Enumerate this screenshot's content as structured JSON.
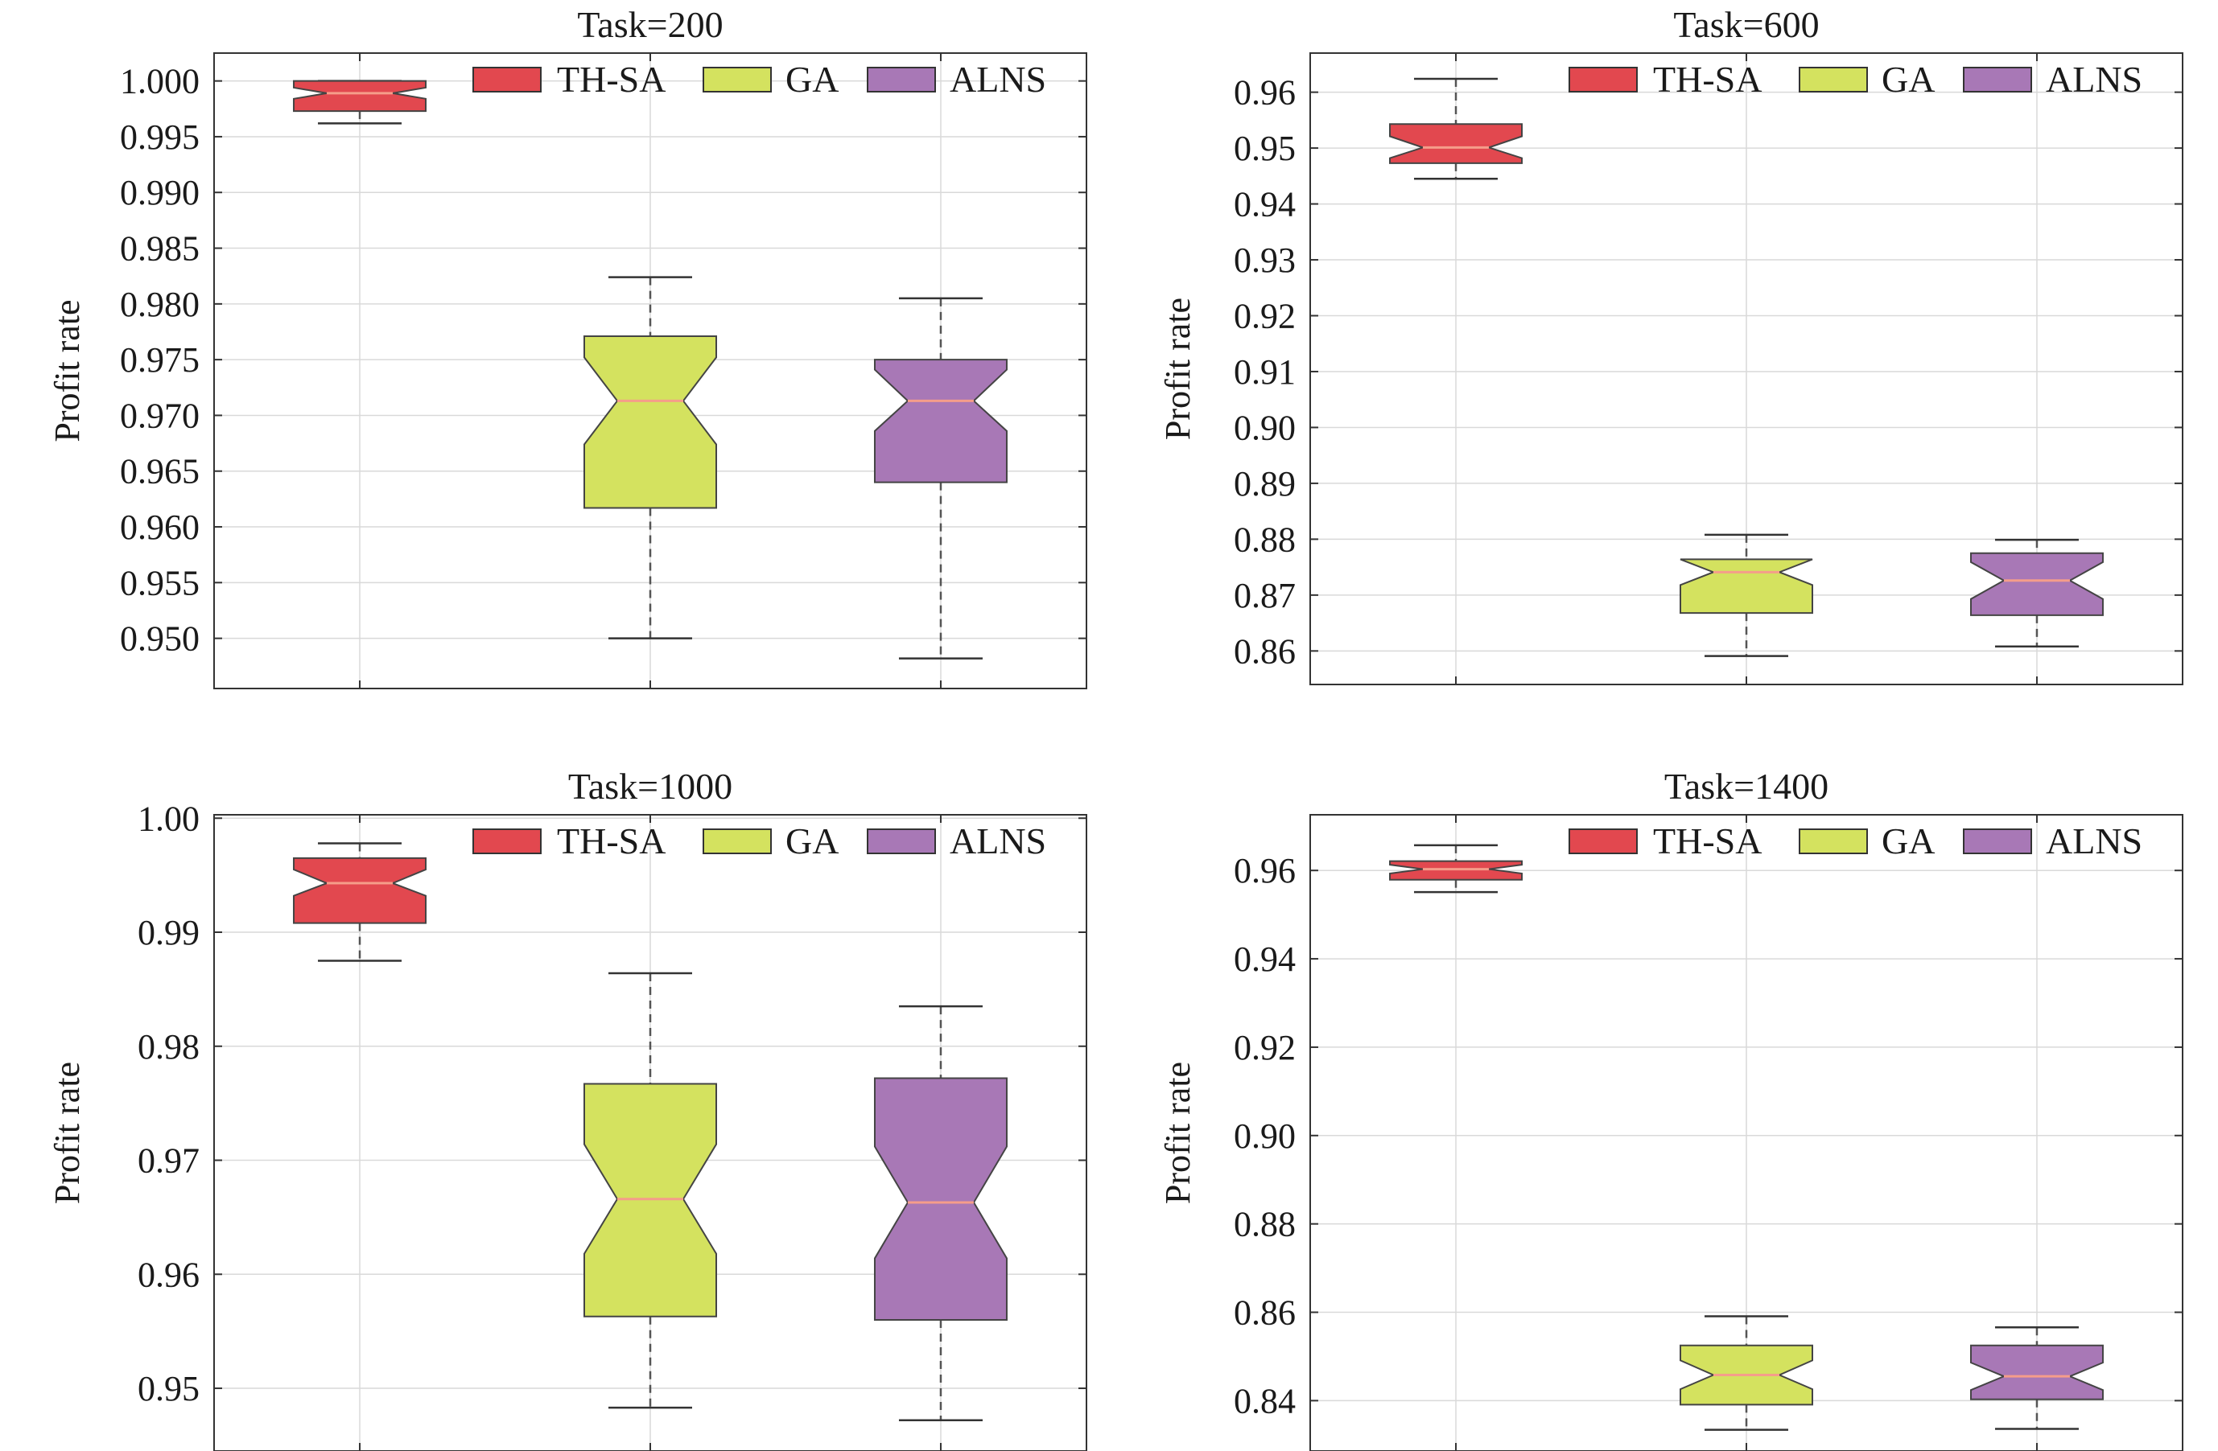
{
  "chart_data": [
    {
      "type": "box",
      "title": "Task=200",
      "ylabel": "Profit rate",
      "ylim": [
        0.9455,
        1.0025
      ],
      "yticks": [
        0.95,
        0.955,
        0.96,
        0.965,
        0.97,
        0.975,
        0.98,
        0.985,
        0.99,
        0.995,
        1.0
      ],
      "ytick_labels": [
        "0.950",
        "0.955",
        "0.960",
        "0.965",
        "0.970",
        "0.975",
        "0.980",
        "0.985",
        "0.990",
        "0.995",
        "1.000"
      ],
      "grid": true,
      "notched": true,
      "legend_position": "top-right",
      "series": [
        {
          "name": "TH-SA",
          "whisker_low": 0.9962,
          "q1": 0.9973,
          "median": 0.9989,
          "q3": 1.0,
          "whisker_high": 1.0,
          "notch_low": 0.9984,
          "notch_high": 0.9994
        },
        {
          "name": "GA",
          "whisker_low": 0.95,
          "q1": 0.9617,
          "median": 0.9713,
          "q3": 0.9771,
          "whisker_high": 0.9824,
          "notch_low": 0.9674,
          "notch_high": 0.9752
        },
        {
          "name": "ALNS",
          "whisker_low": 0.9482,
          "q1": 0.964,
          "median": 0.9713,
          "q3": 0.975,
          "whisker_high": 0.9805,
          "notch_low": 0.9686,
          "notch_high": 0.9741
        }
      ]
    },
    {
      "type": "box",
      "title": "Task=600",
      "ylabel": "Profit rate",
      "ylim": [
        0.854,
        0.967
      ],
      "yticks": [
        0.86,
        0.87,
        0.88,
        0.89,
        0.9,
        0.91,
        0.92,
        0.93,
        0.94,
        0.95,
        0.96
      ],
      "ytick_labels": [
        "0.86",
        "0.87",
        "0.88",
        "0.89",
        "0.90",
        "0.91",
        "0.92",
        "0.93",
        "0.94",
        "0.95",
        "0.96"
      ],
      "grid": true,
      "notched": true,
      "legend_position": "top-right",
      "series": [
        {
          "name": "TH-SA",
          "whisker_low": 0.9445,
          "q1": 0.9473,
          "median": 0.9501,
          "q3": 0.9543,
          "whisker_high": 0.9624,
          "notch_low": 0.9482,
          "notch_high": 0.9521
        },
        {
          "name": "GA",
          "whisker_low": 0.8591,
          "q1": 0.8668,
          "median": 0.8741,
          "q3": 0.8764,
          "whisker_high": 0.8808,
          "notch_low": 0.8718,
          "notch_high": 0.8764
        },
        {
          "name": "ALNS",
          "whisker_low": 0.8608,
          "q1": 0.8664,
          "median": 0.8726,
          "q3": 0.8775,
          "whisker_high": 0.8799,
          "notch_low": 0.8693,
          "notch_high": 0.8759
        }
      ]
    },
    {
      "type": "box",
      "title": "Task=1000",
      "ylabel": "Profit rate",
      "ylim": [
        0.9445,
        1.0003
      ],
      "yticks": [
        0.95,
        0.96,
        0.97,
        0.98,
        0.99,
        1.0
      ],
      "ytick_labels": [
        "0.95",
        "0.96",
        "0.97",
        "0.98",
        "0.99",
        "1.00"
      ],
      "grid": true,
      "notched": true,
      "legend_position": "top-right",
      "series": [
        {
          "name": "TH-SA",
          "whisker_low": 0.9875,
          "q1": 0.9908,
          "median": 0.9943,
          "q3": 0.9965,
          "whisker_high": 0.9978,
          "notch_low": 0.9932,
          "notch_high": 0.9955
        },
        {
          "name": "GA",
          "whisker_low": 0.9483,
          "q1": 0.9563,
          "median": 0.9666,
          "q3": 0.9767,
          "whisker_high": 0.9864,
          "notch_low": 0.9618,
          "notch_high": 0.9714
        },
        {
          "name": "ALNS",
          "whisker_low": 0.9472,
          "q1": 0.956,
          "median": 0.9663,
          "q3": 0.9772,
          "whisker_high": 0.9835,
          "notch_low": 0.9614,
          "notch_high": 0.9712
        }
      ]
    },
    {
      "type": "box",
      "title": "Task=1400",
      "ylabel": "Profit rate",
      "ylim": [
        0.8286,
        0.9726
      ],
      "yticks": [
        0.84,
        0.86,
        0.88,
        0.9,
        0.92,
        0.94,
        0.96
      ],
      "ytick_labels": [
        "0.84",
        "0.86",
        "0.88",
        "0.90",
        "0.92",
        "0.94",
        "0.96"
      ],
      "grid": true,
      "notched": true,
      "legend_position": "top-right",
      "series": [
        {
          "name": "TH-SA",
          "whisker_low": 0.9551,
          "q1": 0.9579,
          "median": 0.9603,
          "q3": 0.9621,
          "whisker_high": 0.9657,
          "notch_low": 0.9593,
          "notch_high": 0.9613
        },
        {
          "name": "GA",
          "whisker_low": 0.8334,
          "q1": 0.8391,
          "median": 0.8458,
          "q3": 0.8525,
          "whisker_high": 0.8591,
          "notch_low": 0.8426,
          "notch_high": 0.8491
        },
        {
          "name": "ALNS",
          "whisker_low": 0.8336,
          "q1": 0.8403,
          "median": 0.8455,
          "q3": 0.8525,
          "whisker_high": 0.8566,
          "notch_low": 0.8424,
          "notch_high": 0.8486
        }
      ]
    }
  ],
  "colors": {
    "TH-SA": "#e2484f",
    "GA": "#d4e25f",
    "ALNS": "#a878b6",
    "median_line": "#f59d8a",
    "whisker": "#555555",
    "grid": "#d9d9d9"
  }
}
